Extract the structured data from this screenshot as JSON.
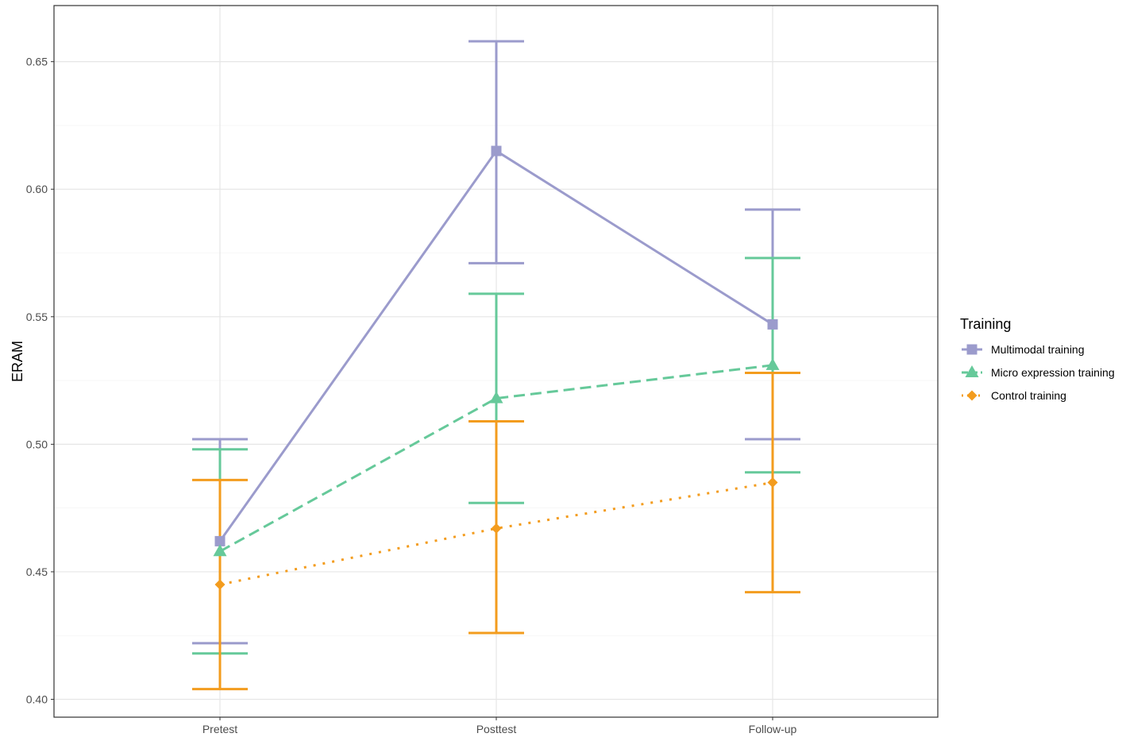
{
  "chart_data": {
    "type": "line",
    "title": "",
    "xlabel": "",
    "ylabel": "ERAM",
    "categories": [
      "Pretest",
      "Posttest",
      "Follow-up"
    ],
    "ylim": [
      0.393,
      0.672
    ],
    "yticks": [
      0.4,
      0.45,
      0.5,
      0.55,
      0.6,
      0.65
    ],
    "ytick_labels": [
      "0.40",
      "0.45",
      "0.50",
      "0.55",
      "0.60",
      "0.65"
    ],
    "grid": true,
    "legend": {
      "title": "Training",
      "placement": "right"
    },
    "series": [
      {
        "name": "Multimodal training",
        "color": "#9b9bcc",
        "marker": "square",
        "linestyle": "solid",
        "values": [
          0.462,
          0.615,
          0.547
        ],
        "err_low": [
          0.422,
          0.571,
          0.502
        ],
        "err_high": [
          0.502,
          0.658,
          0.592
        ]
      },
      {
        "name": "Micro expression training",
        "color": "#66c99a",
        "marker": "triangle",
        "linestyle": "dashed",
        "values": [
          0.458,
          0.518,
          0.531
        ],
        "err_low": [
          0.418,
          0.477,
          0.489
        ],
        "err_high": [
          0.498,
          0.559,
          0.573
        ]
      },
      {
        "name": "Control training",
        "color": "#f39c1e",
        "marker": "diamond",
        "linestyle": "dotted",
        "values": [
          0.445,
          0.467,
          0.485
        ],
        "err_low": [
          0.404,
          0.426,
          0.442
        ],
        "err_high": [
          0.486,
          0.509,
          0.528
        ]
      }
    ]
  }
}
